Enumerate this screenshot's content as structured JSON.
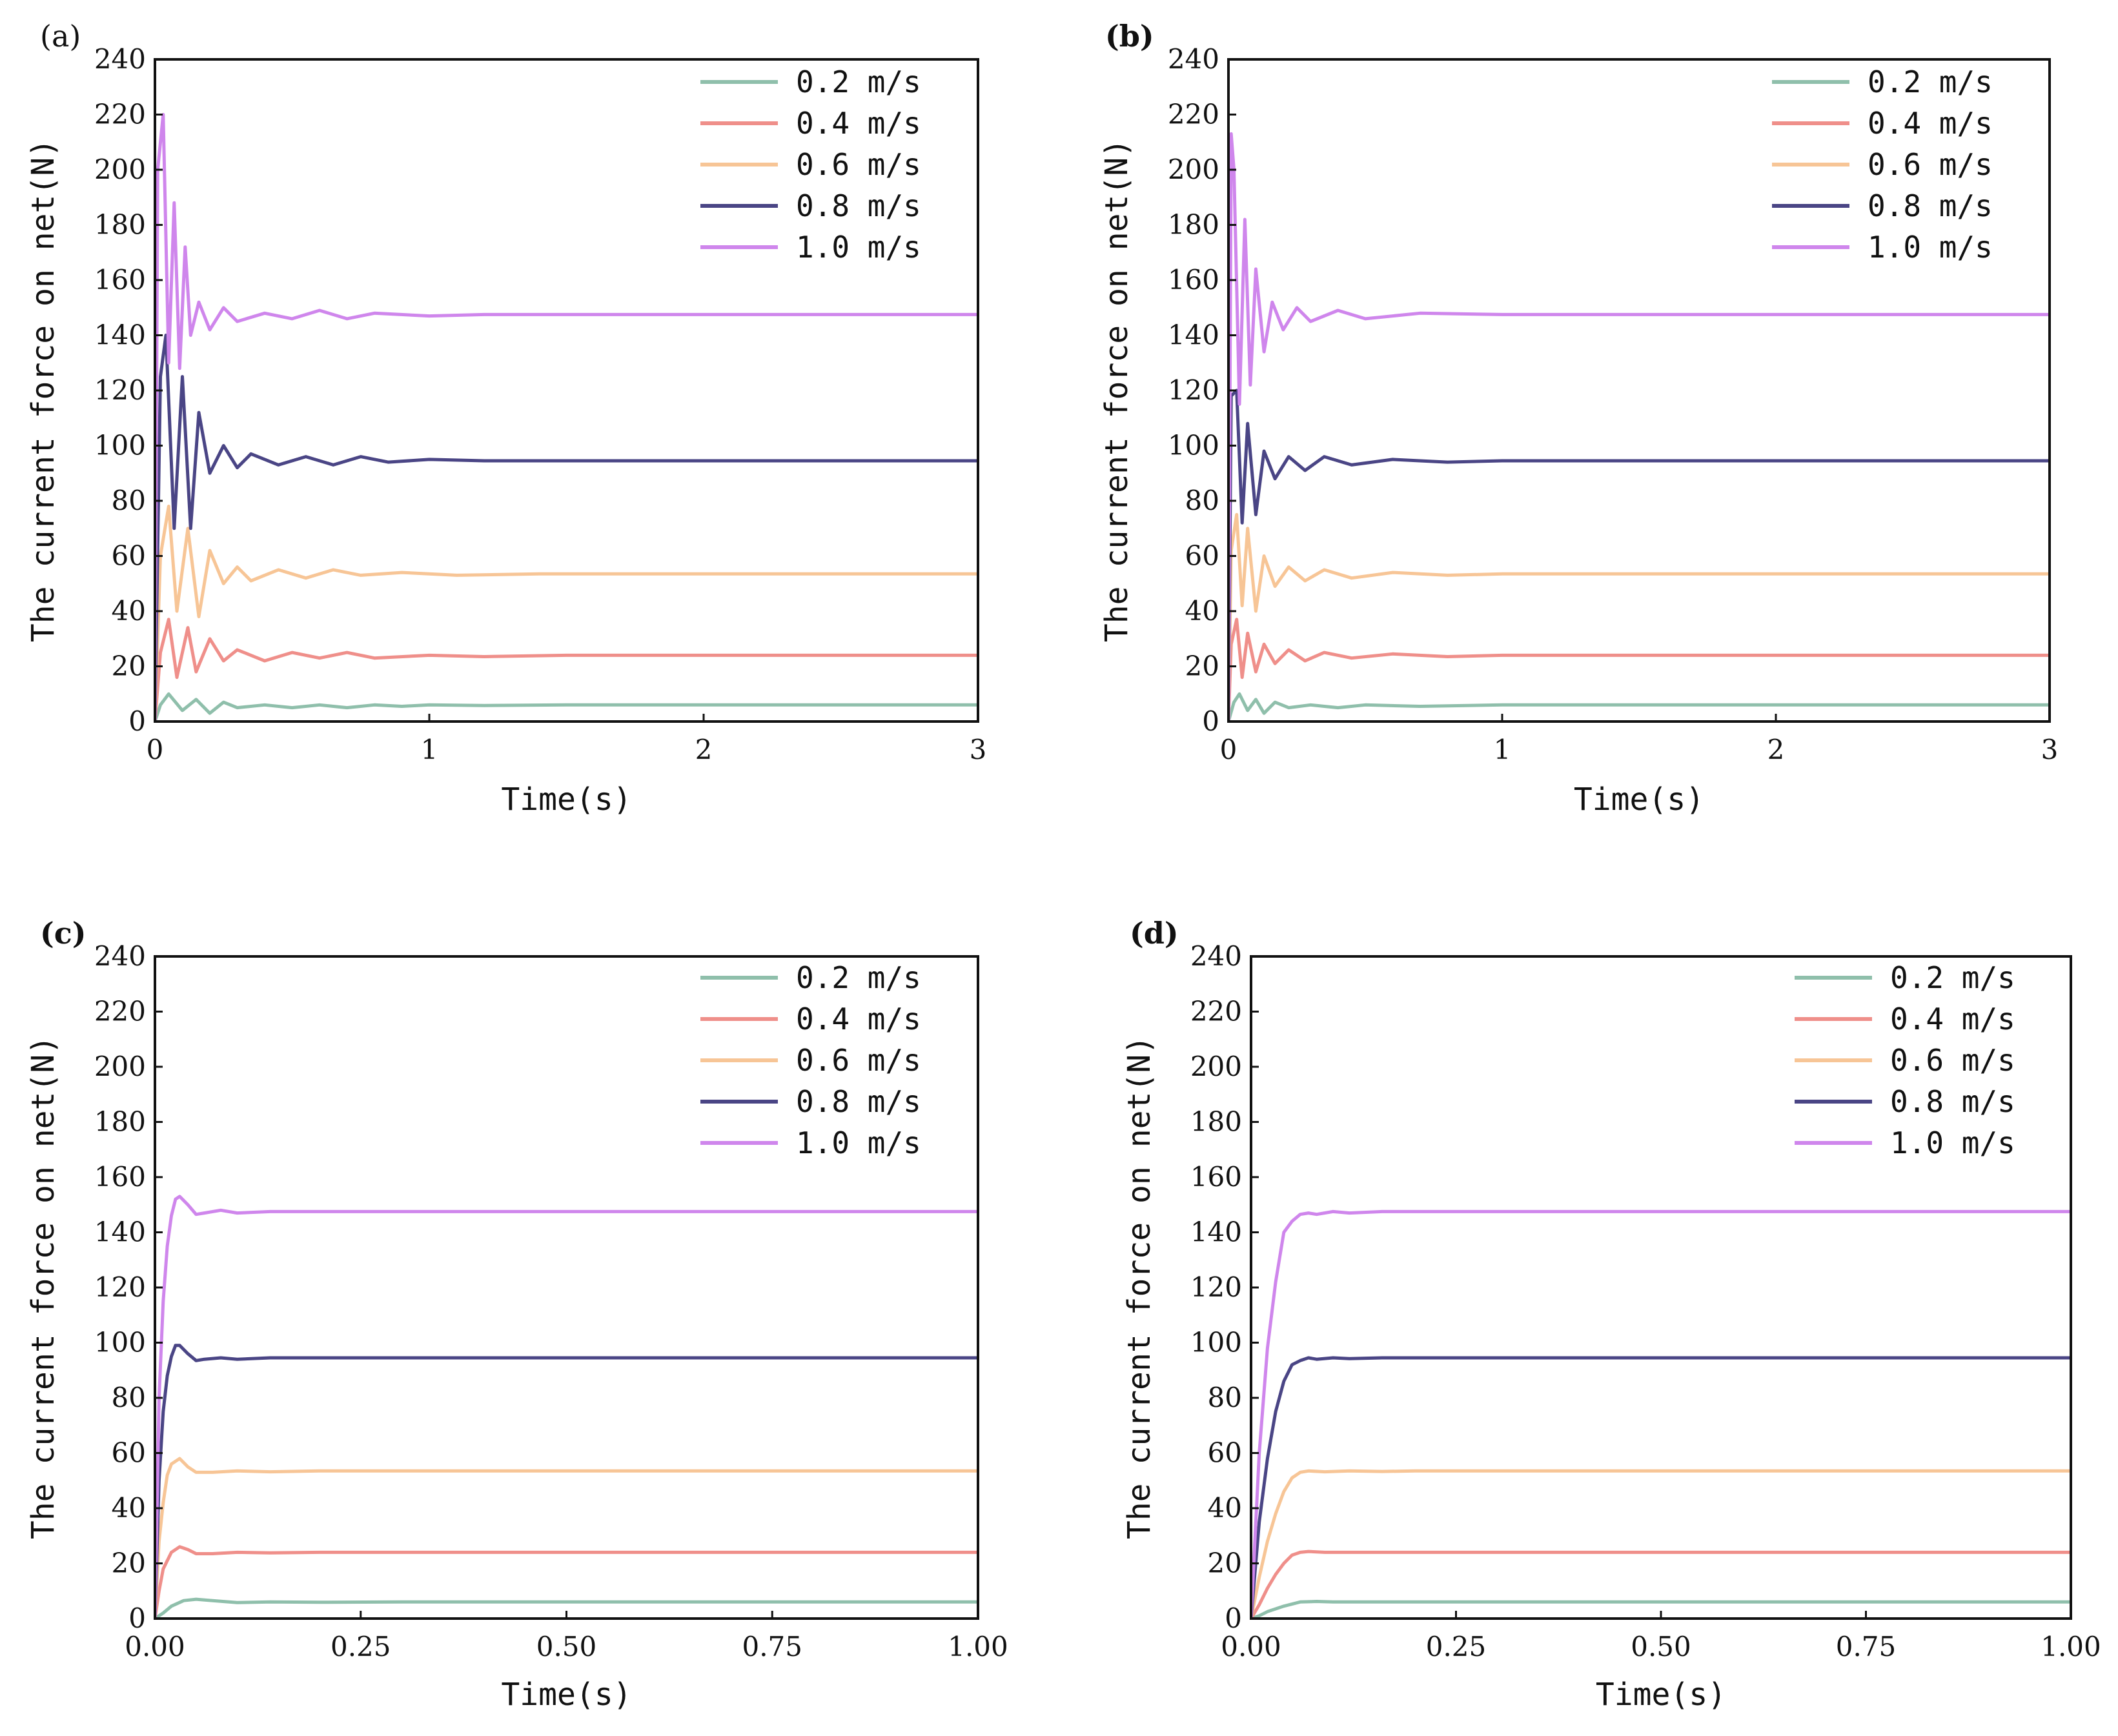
{
  "chart_data": [
    {
      "panel_label": "(a)",
      "type": "line",
      "title": "",
      "xlabel": "Time(s)",
      "ylabel": "The current force on net(N)",
      "xlim": [
        0,
        3
      ],
      "ylim": [
        0,
        240
      ],
      "xticks": [
        "0",
        "1",
        "2",
        "3"
      ],
      "yticks": [
        "0",
        "20",
        "40",
        "60",
        "80",
        "100",
        "120",
        "140",
        "160",
        "180",
        "200",
        "220",
        "240"
      ],
      "legend_position": "top-right",
      "series": [
        {
          "name": "0.2 m/s",
          "color": "#8fbfab",
          "x": [
            0,
            0.02,
            0.05,
            0.1,
            0.15,
            0.2,
            0.25,
            0.3,
            0.4,
            0.5,
            0.6,
            0.7,
            0.8,
            0.9,
            1.0,
            1.2,
            1.5,
            2,
            3
          ],
          "y": [
            0,
            6,
            10,
            4,
            8,
            3,
            7,
            5,
            6,
            5,
            6,
            5,
            6,
            5.5,
            6,
            5.8,
            6,
            6,
            6
          ]
        },
        {
          "name": "0.4 m/s",
          "color": "#ef8f8a",
          "x": [
            0,
            0.02,
            0.05,
            0.08,
            0.12,
            0.15,
            0.2,
            0.25,
            0.3,
            0.4,
            0.5,
            0.6,
            0.7,
            0.8,
            1.0,
            1.2,
            1.5,
            2,
            3
          ],
          "y": [
            0,
            25,
            37,
            16,
            34,
            18,
            30,
            22,
            26,
            22,
            25,
            23,
            25,
            23,
            24,
            23.5,
            24,
            24,
            24
          ]
        },
        {
          "name": "0.6 m/s",
          "color": "#f7c596",
          "x": [
            0,
            0.02,
            0.05,
            0.08,
            0.12,
            0.16,
            0.2,
            0.25,
            0.3,
            0.35,
            0.45,
            0.55,
            0.65,
            0.75,
            0.9,
            1.1,
            1.4,
            2,
            3
          ],
          "y": [
            0,
            60,
            78,
            40,
            70,
            38,
            62,
            50,
            56,
            51,
            55,
            52,
            55,
            53,
            54,
            53,
            53.5,
            53.5,
            53.5
          ]
        },
        {
          "name": "0.8 m/s",
          "color": "#4a4585",
          "x": [
            0,
            0.02,
            0.04,
            0.07,
            0.1,
            0.13,
            0.16,
            0.2,
            0.25,
            0.3,
            0.35,
            0.45,
            0.55,
            0.65,
            0.75,
            0.85,
            1.0,
            1.2,
            1.5,
            2,
            3
          ],
          "y": [
            0,
            125,
            140,
            70,
            125,
            70,
            112,
            90,
            100,
            92,
            97,
            93,
            96,
            93,
            96,
            94,
            95,
            94.5,
            94.5,
            94.5,
            94.5
          ]
        },
        {
          "name": "1.0 m/s",
          "color": "#cf86ec",
          "x": [
            0,
            0.01,
            0.03,
            0.05,
            0.07,
            0.09,
            0.11,
            0.13,
            0.16,
            0.2,
            0.25,
            0.3,
            0.4,
            0.5,
            0.6,
            0.7,
            0.8,
            1.0,
            1.2,
            1.5,
            2,
            3
          ],
          "y": [
            0,
            200,
            220,
            130,
            188,
            128,
            172,
            140,
            152,
            142,
            150,
            145,
            148,
            146,
            149,
            146,
            148,
            147,
            147.5,
            147.5,
            147.5,
            147.5
          ]
        }
      ]
    },
    {
      "panel_label": "(b)",
      "type": "line",
      "title": "",
      "xlabel": "Time(s)",
      "ylabel": "The current force on net(N)",
      "xlim": [
        0,
        3
      ],
      "ylim": [
        0,
        240
      ],
      "xticks": [
        "0",
        "1",
        "2",
        "3"
      ],
      "yticks": [
        "0",
        "20",
        "40",
        "60",
        "80",
        "100",
        "120",
        "140",
        "160",
        "180",
        "200",
        "220",
        "240"
      ],
      "legend_position": "top-right",
      "series": [
        {
          "name": "0.2 m/s",
          "color": "#8fbfab",
          "x": [
            0,
            0.02,
            0.04,
            0.07,
            0.1,
            0.13,
            0.17,
            0.22,
            0.3,
            0.4,
            0.5,
            0.7,
            1.0,
            1.5,
            2,
            3
          ],
          "y": [
            0,
            7,
            10,
            4,
            8,
            3,
            7,
            5,
            6,
            5,
            6,
            5.5,
            6,
            6,
            6,
            6
          ]
        },
        {
          "name": "0.4 m/s",
          "color": "#ef8f8a",
          "x": [
            0,
            0.01,
            0.03,
            0.05,
            0.07,
            0.1,
            0.13,
            0.17,
            0.22,
            0.28,
            0.35,
            0.45,
            0.6,
            0.8,
            1.0,
            1.5,
            2,
            3
          ],
          "y": [
            0,
            28,
            37,
            16,
            32,
            18,
            28,
            21,
            26,
            22,
            25,
            23,
            24.5,
            23.5,
            24,
            24,
            24,
            24
          ]
        },
        {
          "name": "0.6 m/s",
          "color": "#f7c596",
          "x": [
            0,
            0.01,
            0.03,
            0.05,
            0.07,
            0.1,
            0.13,
            0.17,
            0.22,
            0.28,
            0.35,
            0.45,
            0.6,
            0.8,
            1.0,
            1.5,
            2,
            3
          ],
          "y": [
            0,
            62,
            75,
            42,
            70,
            40,
            60,
            49,
            56,
            51,
            55,
            52,
            54,
            53,
            53.5,
            53.5,
            53.5,
            53.5
          ]
        },
        {
          "name": "0.8 m/s",
          "color": "#4a4585",
          "x": [
            0,
            0.01,
            0.03,
            0.05,
            0.07,
            0.1,
            0.13,
            0.17,
            0.22,
            0.28,
            0.35,
            0.45,
            0.6,
            0.8,
            1.0,
            1.5,
            2,
            3
          ],
          "y": [
            0,
            118,
            120,
            72,
            108,
            75,
            98,
            88,
            96,
            91,
            96,
            93,
            95,
            94,
            94.5,
            94.5,
            94.5,
            94.5
          ]
        },
        {
          "name": "1.0 m/s",
          "color": "#cf86ec",
          "x": [
            0,
            0.01,
            0.02,
            0.04,
            0.06,
            0.08,
            0.1,
            0.13,
            0.16,
            0.2,
            0.25,
            0.3,
            0.4,
            0.5,
            0.7,
            1.0,
            1.5,
            2,
            3
          ],
          "y": [
            0,
            213,
            200,
            115,
            182,
            122,
            164,
            134,
            152,
            142,
            150,
            145,
            149,
            146,
            148,
            147.5,
            147.5,
            147.5,
            147.5
          ]
        }
      ]
    },
    {
      "panel_label": "(c)",
      "type": "line",
      "title": "",
      "xlabel": "Time(s)",
      "ylabel": "The current force on net(N)",
      "xlim": [
        0,
        1
      ],
      "ylim": [
        0,
        240
      ],
      "xticks": [
        "0.00",
        "0.25",
        "0.50",
        "0.75",
        "1.00"
      ],
      "yticks": [
        "0",
        "20",
        "40",
        "60",
        "80",
        "100",
        "120",
        "140",
        "160",
        "180",
        "200",
        "220",
        "240"
      ],
      "legend_position": "top-right",
      "series": [
        {
          "name": "0.2 m/s",
          "color": "#8fbfab",
          "x": [
            0,
            0.01,
            0.02,
            0.035,
            0.05,
            0.07,
            0.1,
            0.14,
            0.2,
            0.3,
            0.5,
            1.0
          ],
          "y": [
            0,
            2,
            4.5,
            6.5,
            7,
            6.5,
            5.8,
            6,
            5.9,
            6,
            6,
            6
          ]
        },
        {
          "name": "0.4 m/s",
          "color": "#ef8f8a",
          "x": [
            0,
            0.005,
            0.01,
            0.02,
            0.03,
            0.04,
            0.05,
            0.07,
            0.1,
            0.14,
            0.2,
            0.3,
            0.5,
            1.0
          ],
          "y": [
            0,
            10,
            18,
            24,
            26,
            25,
            23.5,
            23.5,
            24,
            23.8,
            24,
            24,
            24,
            24
          ]
        },
        {
          "name": "0.6 m/s",
          "color": "#f7c596",
          "x": [
            0,
            0.005,
            0.01,
            0.015,
            0.02,
            0.03,
            0.04,
            0.05,
            0.07,
            0.1,
            0.14,
            0.2,
            0.3,
            0.5,
            1.0
          ],
          "y": [
            0,
            28,
            42,
            52,
            56,
            58,
            55,
            53,
            53,
            53.5,
            53.2,
            53.5,
            53.5,
            53.5,
            53.5
          ]
        },
        {
          "name": "0.8 m/s",
          "color": "#4a4585",
          "x": [
            0,
            0.005,
            0.01,
            0.015,
            0.02,
            0.025,
            0.03,
            0.04,
            0.05,
            0.06,
            0.08,
            0.1,
            0.14,
            0.2,
            0.3,
            0.5,
            1.0
          ],
          "y": [
            0,
            50,
            75,
            88,
            95,
            99,
            99,
            96,
            93.5,
            94,
            94.5,
            94,
            94.5,
            94.5,
            94.5,
            94.5,
            94.5
          ]
        },
        {
          "name": "1.0 m/s",
          "color": "#cf86ec",
          "x": [
            0,
            0.005,
            0.01,
            0.015,
            0.02,
            0.025,
            0.03,
            0.04,
            0.05,
            0.06,
            0.08,
            0.1,
            0.14,
            0.2,
            0.3,
            0.5,
            1.0
          ],
          "y": [
            0,
            80,
            115,
            135,
            146,
            152,
            153,
            150,
            146.5,
            147,
            148,
            147,
            147.5,
            147.5,
            147.5,
            147.5,
            147.5
          ]
        }
      ]
    },
    {
      "panel_label": "(d)",
      "type": "line",
      "title": "",
      "xlabel": "Time(s)",
      "ylabel": "The current force on net(N)",
      "xlim": [
        0,
        1
      ],
      "ylim": [
        0,
        240
      ],
      "xticks": [
        "0.00",
        "0.25",
        "0.50",
        "0.75",
        "1.00"
      ],
      "yticks": [
        "0",
        "20",
        "40",
        "60",
        "80",
        "100",
        "120",
        "140",
        "160",
        "180",
        "200",
        "220",
        "240"
      ],
      "legend_position": "top-right",
      "series": [
        {
          "name": "0.2 m/s",
          "color": "#8fbfab",
          "x": [
            0,
            0.01,
            0.02,
            0.04,
            0.06,
            0.08,
            0.1,
            0.15,
            0.2,
            0.3,
            0.5,
            1.0
          ],
          "y": [
            0,
            1,
            2.5,
            4.5,
            6,
            6.2,
            6,
            6,
            6,
            6,
            6,
            6
          ]
        },
        {
          "name": "0.4 m/s",
          "color": "#ef8f8a",
          "x": [
            0,
            0.01,
            0.02,
            0.03,
            0.04,
            0.05,
            0.06,
            0.07,
            0.09,
            0.12,
            0.16,
            0.2,
            0.3,
            0.5,
            1.0
          ],
          "y": [
            0,
            5,
            11,
            16,
            20,
            23,
            24,
            24.3,
            24,
            24,
            24,
            24,
            24,
            24,
            24
          ]
        },
        {
          "name": "0.6 m/s",
          "color": "#f7c596",
          "x": [
            0,
            0.01,
            0.02,
            0.03,
            0.04,
            0.05,
            0.06,
            0.07,
            0.09,
            0.12,
            0.16,
            0.2,
            0.3,
            0.5,
            1.0
          ],
          "y": [
            0,
            15,
            28,
            38,
            46,
            51,
            53,
            53.5,
            53.2,
            53.5,
            53.3,
            53.5,
            53.5,
            53.5,
            53.5
          ]
        },
        {
          "name": "0.8 m/s",
          "color": "#4a4585",
          "x": [
            0,
            0.01,
            0.02,
            0.03,
            0.04,
            0.05,
            0.06,
            0.07,
            0.08,
            0.1,
            0.12,
            0.16,
            0.2,
            0.3,
            0.5,
            1.0
          ],
          "y": [
            0,
            35,
            58,
            75,
            86,
            92,
            93.5,
            94.5,
            94,
            94.5,
            94.2,
            94.5,
            94.5,
            94.5,
            94.5,
            94.5
          ]
        },
        {
          "name": "1.0 m/s",
          "color": "#cf86ec",
          "x": [
            0,
            0.01,
            0.02,
            0.03,
            0.04,
            0.05,
            0.06,
            0.07,
            0.08,
            0.1,
            0.12,
            0.16,
            0.2,
            0.3,
            0.5,
            1.0
          ],
          "y": [
            0,
            60,
            98,
            122,
            140,
            144,
            146.5,
            147,
            146.5,
            147.5,
            147,
            147.5,
            147.5,
            147.5,
            147.5,
            147.5
          ]
        }
      ]
    }
  ]
}
